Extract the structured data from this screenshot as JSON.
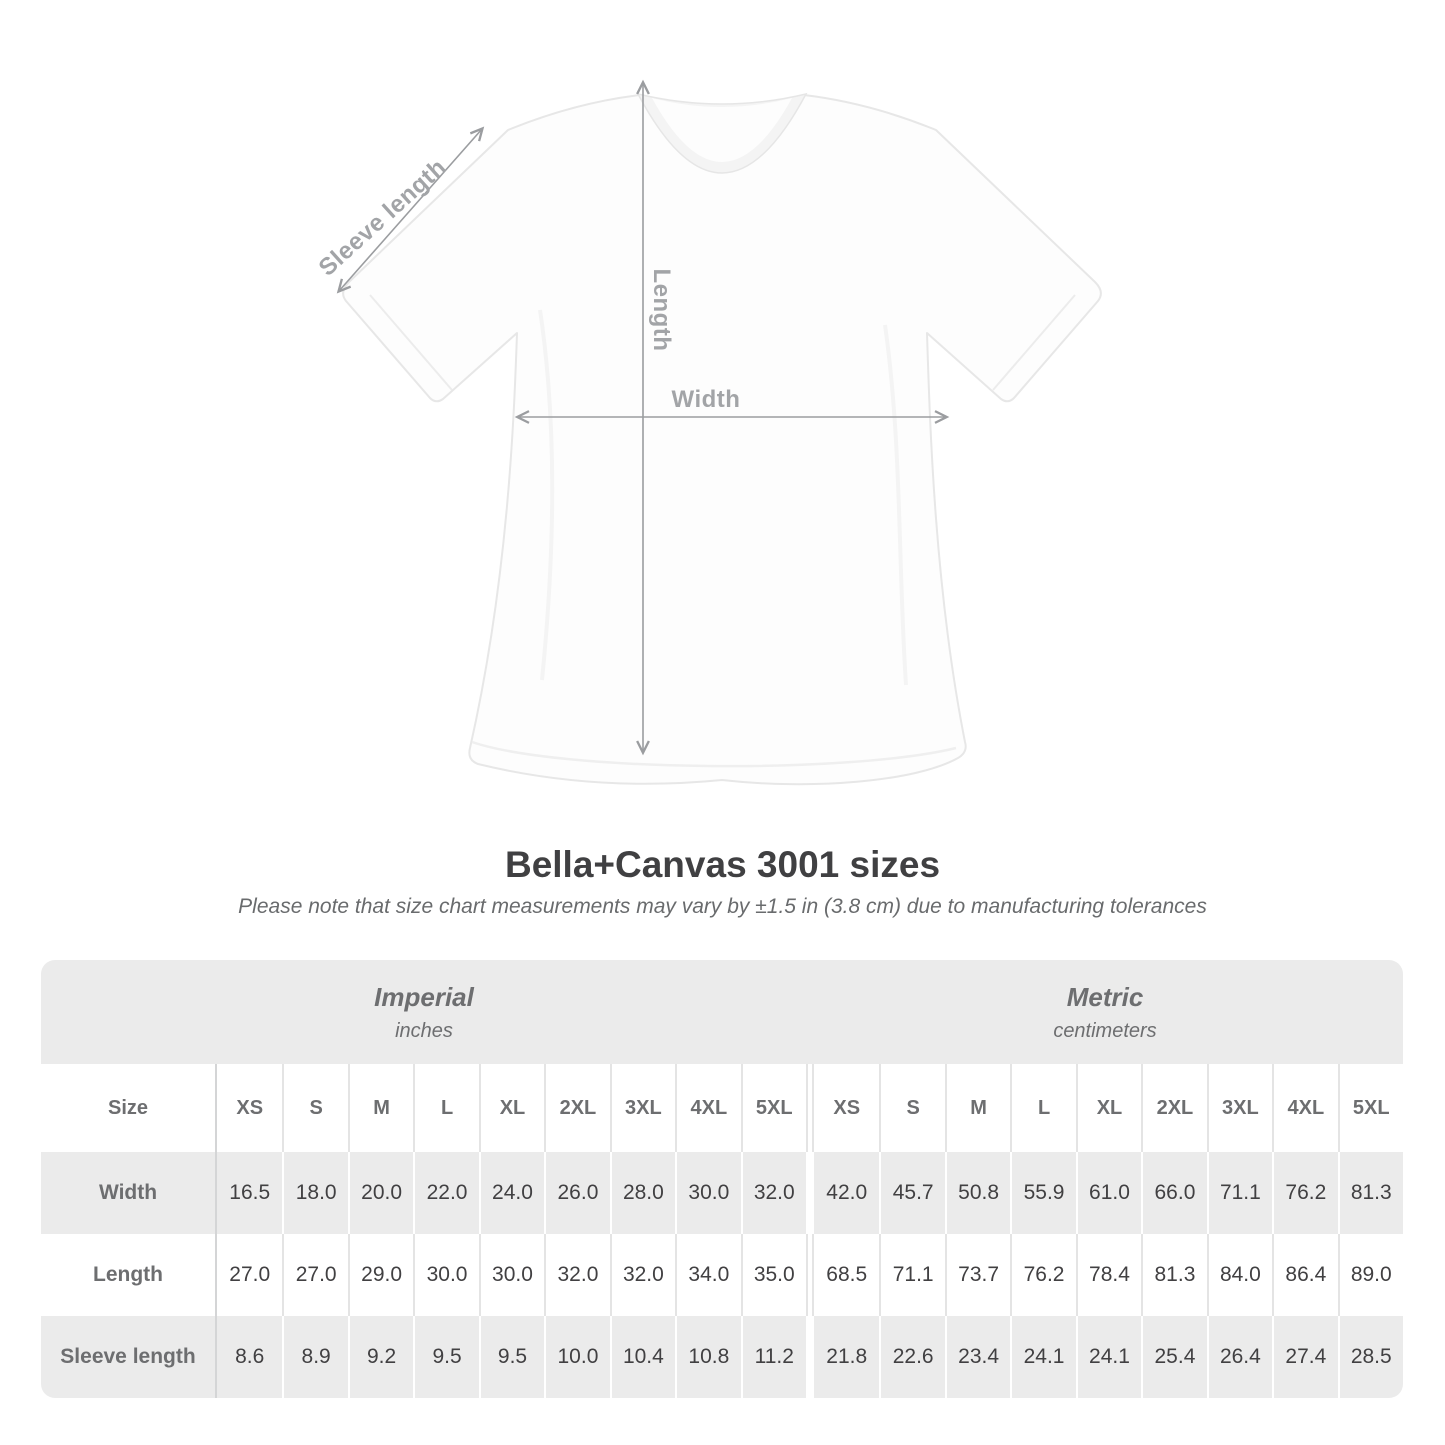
{
  "diagram": {
    "sleeve_label": "Sleeve length",
    "length_label": "Length",
    "width_label": "Width"
  },
  "header": {
    "title": "Bella+Canvas 3001 sizes",
    "note": "Please note that size chart measurements may vary by ±1.5 in (3.8 cm) due to manufacturing tolerances"
  },
  "table": {
    "size_header": "Size",
    "groups": [
      {
        "name": "Imperial",
        "unit": "inches"
      },
      {
        "name": "Metric",
        "unit": "centimeters"
      }
    ],
    "sizes": [
      "XS",
      "S",
      "M",
      "L",
      "XL",
      "2XL",
      "3XL",
      "4XL",
      "5XL"
    ],
    "rows": [
      {
        "label": "Width",
        "imperial": [
          "16.5",
          "18.0",
          "20.0",
          "22.0",
          "24.0",
          "26.0",
          "28.0",
          "30.0",
          "32.0"
        ],
        "metric": [
          "42.0",
          "45.7",
          "50.8",
          "55.9",
          "61.0",
          "66.0",
          "71.1",
          "76.2",
          "81.3"
        ]
      },
      {
        "label": "Length",
        "imperial": [
          "27.0",
          "27.0",
          "29.0",
          "30.0",
          "30.0",
          "32.0",
          "32.0",
          "34.0",
          "35.0"
        ],
        "metric": [
          "68.5",
          "71.1",
          "73.7",
          "76.2",
          "78.4",
          "81.3",
          "84.0",
          "86.4",
          "89.0"
        ]
      },
      {
        "label": "Sleeve length",
        "imperial": [
          "8.6",
          "8.9",
          "9.2",
          "9.5",
          "9.5",
          "10.0",
          "10.4",
          "10.8",
          "11.2"
        ],
        "metric": [
          "21.8",
          "22.6",
          "23.4",
          "24.1",
          "24.1",
          "25.4",
          "26.4",
          "27.4",
          "28.5"
        ]
      }
    ]
  },
  "colors": {
    "block_gray": "#ebebeb",
    "value_text": "#414042",
    "label_text": "#6d6e70",
    "diagram_label": "#a2a4a7",
    "arrow": "#9b9da0"
  },
  "chart_data": {
    "type": "table",
    "title": "Bella+Canvas 3001 sizes",
    "subtitle": "Please note that size chart measurements may vary by ±1.5 in (3.8 cm) due to manufacturing tolerances",
    "column_groups": [
      "Imperial (inches)",
      "Metric (centimeters)"
    ],
    "columns": [
      "XS",
      "S",
      "M",
      "L",
      "XL",
      "2XL",
      "3XL",
      "4XL",
      "5XL"
    ],
    "rows": [
      {
        "label": "Width",
        "imperial_in": [
          16.5,
          18.0,
          20.0,
          22.0,
          24.0,
          26.0,
          28.0,
          30.0,
          32.0
        ],
        "metric_cm": [
          42.0,
          45.7,
          50.8,
          55.9,
          61.0,
          66.0,
          71.1,
          76.2,
          81.3
        ]
      },
      {
        "label": "Length",
        "imperial_in": [
          27.0,
          27.0,
          29.0,
          30.0,
          30.0,
          32.0,
          32.0,
          34.0,
          35.0
        ],
        "metric_cm": [
          68.5,
          71.1,
          73.7,
          76.2,
          78.4,
          81.3,
          84.0,
          86.4,
          89.0
        ]
      },
      {
        "label": "Sleeve length",
        "imperial_in": [
          8.6,
          8.9,
          9.2,
          9.5,
          9.5,
          10.0,
          10.4,
          10.8,
          11.2
        ],
        "metric_cm": [
          21.8,
          22.6,
          23.4,
          24.1,
          24.1,
          25.4,
          26.4,
          27.4,
          28.5
        ]
      }
    ]
  }
}
